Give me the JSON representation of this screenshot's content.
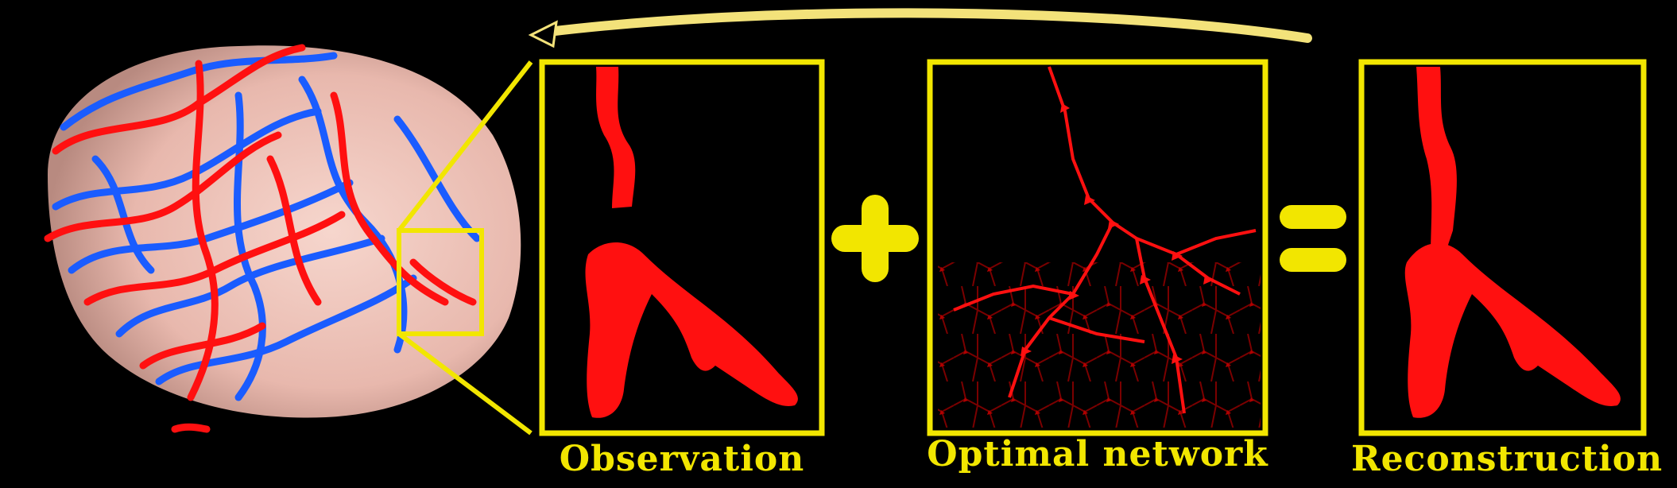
{
  "colors": {
    "background": "#000000",
    "frame_yellow": "#f2e600",
    "arrow_yellow": "#f3e27a",
    "vessel_red": "#ff1010",
    "vessel_blue": "#1a5cff",
    "brain_pink": "#f2c9bf"
  },
  "panels": [
    {
      "id": "observation",
      "caption": "Observation"
    },
    {
      "id": "optimal-network",
      "caption": "Optimal network"
    },
    {
      "id": "reconstruction",
      "caption": "Reconstruction"
    }
  ],
  "operators": {
    "plus": "+",
    "equals": "="
  },
  "feedback_arrow": {
    "direction": "right-to-left"
  },
  "brain": {
    "description": "3D brain rendering with red arteries and blue veins"
  }
}
